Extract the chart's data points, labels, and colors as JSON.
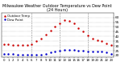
{
  "title": "Milwaukee Weather Outdoor Temperature vs Dew Point (24 Hours)",
  "title_fontsize": 3.5,
  "temp_color": "#cc0000",
  "dew_color": "#0000cc",
  "background": "#ffffff",
  "ylim": [
    18,
    65
  ],
  "yticks": [
    20,
    25,
    30,
    35,
    40,
    45,
    50,
    55,
    60
  ],
  "ytick_fontsize": 3.0,
  "xtick_fontsize": 2.8,
  "grid_color": "#888888",
  "hours": [
    0,
    1,
    2,
    3,
    4,
    5,
    6,
    7,
    8,
    9,
    10,
    11,
    12,
    13,
    14,
    15,
    16,
    17,
    18,
    19,
    20,
    21,
    22,
    23
  ],
  "temp": [
    32,
    32,
    31,
    31,
    31,
    31,
    32,
    35,
    38,
    42,
    46,
    50,
    54,
    57,
    56,
    54,
    49,
    45,
    41,
    38,
    36,
    35,
    33,
    31
  ],
  "dew": [
    22,
    22,
    22,
    21,
    21,
    21,
    21,
    21,
    21,
    22,
    23,
    24,
    25,
    26,
    26,
    26,
    25,
    25,
    24,
    24,
    24,
    24,
    23,
    22
  ],
  "legend_temp": "Outdoor Temp",
  "legend_dew": "Dew Point",
  "legend_fontsize": 2.8,
  "vline_hours": [
    6,
    12,
    18
  ],
  "marker_size": 1.5,
  "linewidth": 0.3
}
